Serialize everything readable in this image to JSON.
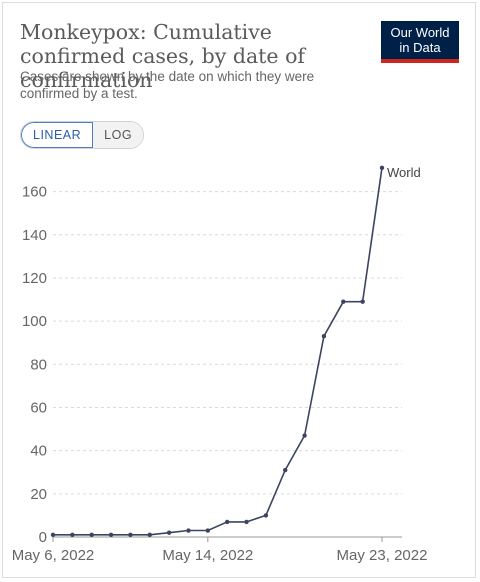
{
  "header": {
    "title": "Monkeypox: Cumulative confirmed cases, by date of confirmation",
    "subtitle": "Cases are shown by the date on which they were confirmed by a test.",
    "logo_line1": "Our World",
    "logo_line2": "in Data"
  },
  "scale_toggle": {
    "linear_label": "LINEAR",
    "log_label": "LOG",
    "selected": "LINEAR"
  },
  "colors": {
    "line": "#3b4560",
    "logo_bg": "#002147",
    "logo_accent": "#ce261e"
  },
  "chart_data": {
    "type": "line",
    "title": "Monkeypox: Cumulative confirmed cases, by date of confirmation",
    "xlabel": "",
    "ylabel": "",
    "ylim": [
      0,
      170
    ],
    "yticks": [
      0,
      20,
      40,
      60,
      80,
      100,
      120,
      140,
      160
    ],
    "xtick_labels": [
      "May 6, 2022",
      "May 14, 2022",
      "May 23, 2022"
    ],
    "xtick_dates": [
      "2022-05-06",
      "2022-05-14",
      "2022-05-23"
    ],
    "grid": "horizontal dashed",
    "series": [
      {
        "name": "World",
        "points": [
          {
            "x": "2022-05-06",
            "y": 1
          },
          {
            "x": "2022-05-07",
            "y": 1
          },
          {
            "x": "2022-05-08",
            "y": 1
          },
          {
            "x": "2022-05-09",
            "y": 1
          },
          {
            "x": "2022-05-10",
            "y": 1
          },
          {
            "x": "2022-05-11",
            "y": 1
          },
          {
            "x": "2022-05-12",
            "y": 2
          },
          {
            "x": "2022-05-13",
            "y": 3
          },
          {
            "x": "2022-05-14",
            "y": 3
          },
          {
            "x": "2022-05-15",
            "y": 7
          },
          {
            "x": "2022-05-16",
            "y": 7
          },
          {
            "x": "2022-05-17",
            "y": 10
          },
          {
            "x": "2022-05-18",
            "y": 31
          },
          {
            "x": "2022-05-19",
            "y": 47
          },
          {
            "x": "2022-05-20",
            "y": 93
          },
          {
            "x": "2022-05-21",
            "y": 109
          },
          {
            "x": "2022-05-22",
            "y": 109
          },
          {
            "x": "2022-05-23",
            "y": 171
          }
        ]
      }
    ]
  }
}
